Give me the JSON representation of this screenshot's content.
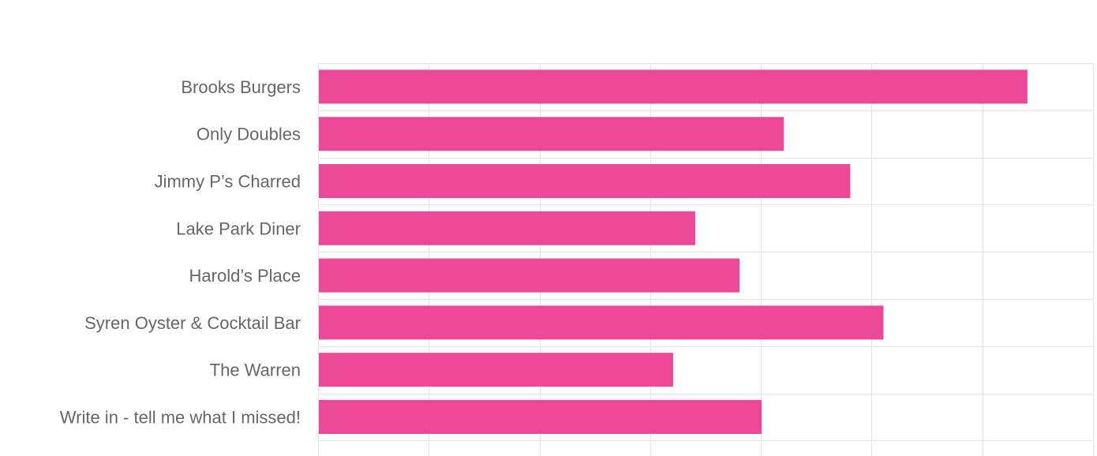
{
  "chart_data": {
    "type": "bar",
    "orientation": "horizontal",
    "title": "",
    "xlabel": "",
    "ylabel": "",
    "categories": [
      "Brooks Burgers",
      "Only Doubles",
      "Jimmy P’s Charred",
      "Lake Park Diner",
      "Harold’s Place",
      "Syren Oyster & Cocktail Bar",
      "The Warren",
      "Write in - tell me what I missed!"
    ],
    "series": [
      {
        "values": [
          32,
          21,
          24,
          17,
          19,
          25.5,
          16,
          20
        ]
      }
    ],
    "xlim": [
      0,
      35
    ],
    "grid": true,
    "tick_labels_visible": false,
    "bar_color": "#ec4899"
  }
}
